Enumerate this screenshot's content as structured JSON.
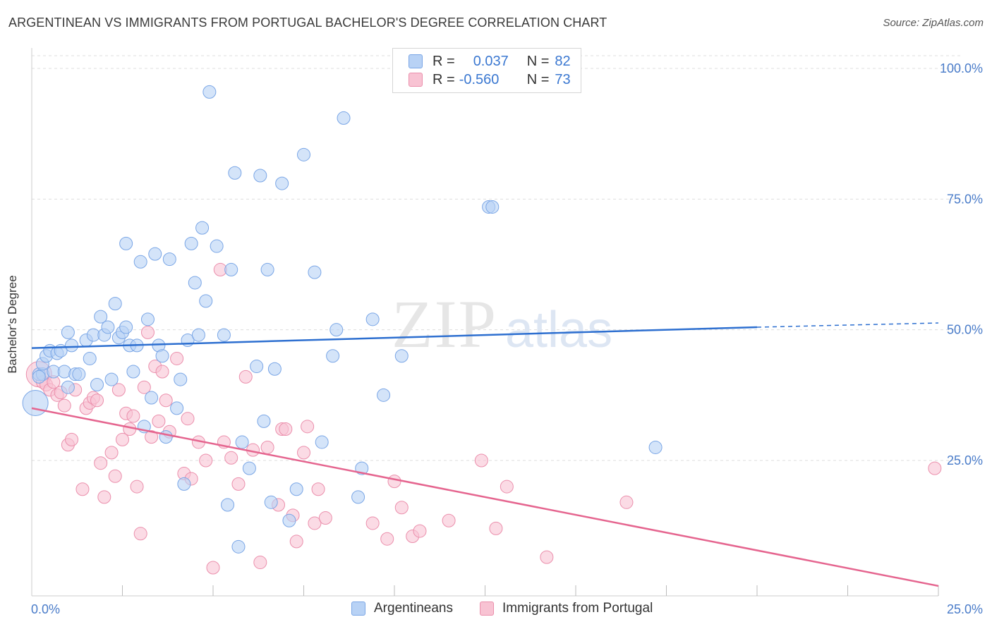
{
  "header": {
    "title": "ARGENTINEAN VS IMMIGRANTS FROM PORTUGAL BACHELOR'S DEGREE CORRELATION CHART",
    "source": "Source: ZipAtlas.com"
  },
  "watermark": {
    "zip": "ZIP",
    "atlas": "atlas"
  },
  "legend_top": {
    "rows": [
      {
        "r_label": "R =",
        "r_value": "0.037",
        "n_label": "N =",
        "n_value": "82"
      },
      {
        "r_label": "R =",
        "r_value": "-0.560",
        "n_label": "N =",
        "n_value": "73"
      }
    ]
  },
  "colors": {
    "blue_fill": "#b8d2f5",
    "blue_stroke": "#7aa6e6",
    "blue_line": "#2d6fd0",
    "pink_fill": "#f8c3d3",
    "pink_stroke": "#eb8fac",
    "pink_line": "#e5658f",
    "tick_text": "#4a7cc9",
    "grid": "#dddddd"
  },
  "chart_data": {
    "type": "scatter",
    "xlabel": "",
    "ylabel": "Bachelor's Degree",
    "xlim": [
      0,
      25
    ],
    "ylim": [
      0,
      100
    ],
    "x_tick_labels": [
      {
        "value": 0,
        "label": "0.0%"
      },
      {
        "value": 25,
        "label": "25.0%"
      }
    ],
    "y_tick_labels": [
      {
        "value": 100,
        "label": "100.0%"
      },
      {
        "value": 75,
        "label": "75.0%"
      },
      {
        "value": 50,
        "label": "50.0%"
      },
      {
        "value": 25,
        "label": "25.0%"
      }
    ],
    "grid": true,
    "legend_position": "bottom",
    "series": [
      {
        "name": "Argentineans",
        "color": "blue",
        "trend": {
          "x": [
            0,
            20,
            25
          ],
          "y": [
            46.5,
            50.5,
            51.3
          ],
          "dashed_from_x": 20
        },
        "points": [
          [
            0.1,
            36.0,
            "big"
          ],
          [
            0.2,
            41.5
          ],
          [
            0.3,
            41.5
          ],
          [
            0.3,
            43.5
          ],
          [
            0.4,
            45.0
          ],
          [
            0.5,
            46.0
          ],
          [
            0.6,
            42.0
          ],
          [
            0.7,
            45.5
          ],
          [
            0.8,
            46.0
          ],
          [
            0.9,
            42.0
          ],
          [
            1.0,
            49.5
          ],
          [
            1.0,
            39.0
          ],
          [
            1.1,
            47.0
          ],
          [
            1.2,
            41.5
          ],
          [
            1.3,
            41.5
          ],
          [
            1.5,
            48.0
          ],
          [
            1.6,
            44.5
          ],
          [
            1.7,
            49.0
          ],
          [
            1.8,
            39.5
          ],
          [
            1.9,
            52.5
          ],
          [
            2.0,
            49.0
          ],
          [
            2.1,
            50.5
          ],
          [
            2.2,
            40.5
          ],
          [
            2.3,
            55.0
          ],
          [
            2.4,
            48.5
          ],
          [
            2.5,
            49.5
          ],
          [
            2.6,
            50.5
          ],
          [
            2.6,
            66.5
          ],
          [
            2.7,
            47.0
          ],
          [
            2.8,
            42.0
          ],
          [
            2.9,
            47.0
          ],
          [
            3.0,
            63.0
          ],
          [
            3.1,
            31.5
          ],
          [
            3.2,
            52.0
          ],
          [
            3.3,
            37.0
          ],
          [
            3.4,
            64.5
          ],
          [
            3.5,
            47.0
          ],
          [
            3.6,
            45.0
          ],
          [
            3.7,
            29.5
          ],
          [
            3.8,
            63.5
          ],
          [
            4.0,
            35.0
          ],
          [
            4.1,
            40.5
          ],
          [
            4.2,
            20.5
          ],
          [
            4.3,
            48.0
          ],
          [
            4.4,
            66.5
          ],
          [
            4.5,
            59.0
          ],
          [
            4.6,
            49.0
          ],
          [
            4.7,
            69.5
          ],
          [
            4.8,
            55.5
          ],
          [
            4.9,
            95.5
          ],
          [
            5.1,
            66.0
          ],
          [
            5.3,
            49.0
          ],
          [
            5.4,
            16.5
          ],
          [
            5.5,
            61.5
          ],
          [
            5.6,
            80.0
          ],
          [
            5.7,
            8.5
          ],
          [
            5.8,
            28.5
          ],
          [
            6.0,
            23.5
          ],
          [
            6.2,
            43.0
          ],
          [
            6.3,
            79.5
          ],
          [
            6.4,
            32.5
          ],
          [
            6.5,
            61.5
          ],
          [
            6.6,
            17.0
          ],
          [
            6.7,
            42.5
          ],
          [
            6.9,
            78.0
          ],
          [
            7.1,
            13.5
          ],
          [
            7.3,
            19.5
          ],
          [
            7.5,
            83.5
          ],
          [
            7.8,
            61.0
          ],
          [
            8.0,
            28.5
          ],
          [
            8.3,
            45.0
          ],
          [
            8.4,
            50.0
          ],
          [
            8.6,
            90.5
          ],
          [
            9.0,
            18.0
          ],
          [
            9.1,
            23.5
          ],
          [
            9.4,
            52.0
          ],
          [
            9.7,
            37.5
          ],
          [
            10.2,
            45.0
          ],
          [
            12.6,
            73.5
          ],
          [
            12.7,
            73.5
          ],
          [
            17.2,
            27.5
          ],
          [
            0.2,
            41.0
          ]
        ]
      },
      {
        "name": "Immigrants from Portugal",
        "color": "pink",
        "trend": {
          "x": [
            0,
            25
          ],
          "y": [
            35.0,
            1.0
          ]
        },
        "points": [
          [
            0.2,
            41.5,
            "big"
          ],
          [
            0.3,
            40.0
          ],
          [
            0.4,
            39.5
          ],
          [
            0.5,
            38.5
          ],
          [
            0.6,
            40.0
          ],
          [
            0.7,
            37.5
          ],
          [
            0.8,
            38.0
          ],
          [
            0.9,
            35.5
          ],
          [
            1.0,
            28.0
          ],
          [
            1.1,
            29.0
          ],
          [
            1.2,
            38.5
          ],
          [
            1.4,
            19.5
          ],
          [
            1.5,
            35.0
          ],
          [
            1.6,
            36.0
          ],
          [
            1.7,
            37.0
          ],
          [
            1.8,
            36.5
          ],
          [
            1.9,
            24.5
          ],
          [
            2.0,
            18.0
          ],
          [
            2.2,
            26.5
          ],
          [
            2.3,
            22.0
          ],
          [
            2.4,
            38.5
          ],
          [
            2.5,
            29.0
          ],
          [
            2.6,
            34.0
          ],
          [
            2.7,
            31.0
          ],
          [
            2.8,
            33.5
          ],
          [
            2.9,
            20.0
          ],
          [
            3.0,
            11.0
          ],
          [
            3.1,
            39.0
          ],
          [
            3.2,
            49.5
          ],
          [
            3.3,
            29.5
          ],
          [
            3.4,
            43.0
          ],
          [
            3.5,
            32.5
          ],
          [
            3.6,
            42.0
          ],
          [
            3.7,
            36.5
          ],
          [
            3.8,
            30.5
          ],
          [
            4.0,
            44.5
          ],
          [
            4.2,
            22.5
          ],
          [
            4.3,
            33.0
          ],
          [
            4.4,
            21.5
          ],
          [
            4.6,
            28.5
          ],
          [
            4.8,
            25.0
          ],
          [
            5.0,
            4.5
          ],
          [
            5.2,
            61.5
          ],
          [
            5.3,
            28.5
          ],
          [
            5.5,
            25.5
          ],
          [
            5.7,
            20.5
          ],
          [
            5.9,
            41.0
          ],
          [
            6.1,
            27.0
          ],
          [
            6.3,
            5.5
          ],
          [
            6.5,
            27.5
          ],
          [
            6.8,
            16.5
          ],
          [
            6.9,
            31.0
          ],
          [
            7.0,
            31.0
          ],
          [
            7.2,
            14.5
          ],
          [
            7.3,
            9.5
          ],
          [
            7.5,
            26.5
          ],
          [
            7.6,
            31.5
          ],
          [
            7.8,
            13.0
          ],
          [
            7.9,
            19.5
          ],
          [
            8.1,
            14.0
          ],
          [
            9.4,
            13.0
          ],
          [
            9.8,
            10.0
          ],
          [
            10.0,
            21.0
          ],
          [
            10.2,
            16.0
          ],
          [
            10.5,
            10.5
          ],
          [
            10.7,
            11.5
          ],
          [
            11.5,
            13.5
          ],
          [
            12.4,
            25.0
          ],
          [
            12.8,
            12.0
          ],
          [
            13.1,
            20.0
          ],
          [
            14.2,
            6.5
          ],
          [
            16.4,
            17.0
          ],
          [
            24.9,
            23.5
          ]
        ]
      }
    ]
  },
  "bottom_legend": {
    "items": [
      {
        "label": "Argentineans"
      },
      {
        "label": "Immigrants from Portugal"
      }
    ]
  }
}
